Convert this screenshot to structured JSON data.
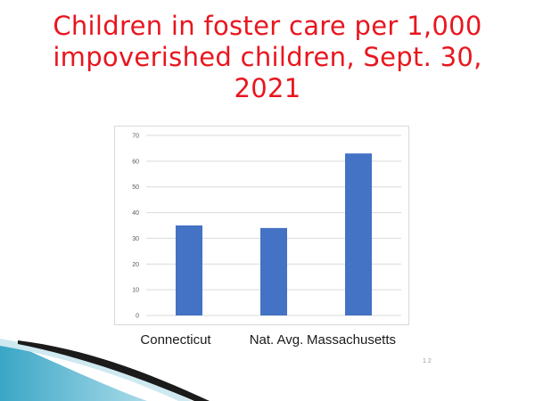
{
  "title_lines": [
    "Children in foster care per 1,000",
    "impoverished children, Sept. 30,",
    "2021"
  ],
  "page_number": "1 2",
  "colors": {
    "title": "#e8161e",
    "bar": "#4472c4",
    "grid": "#d9d9d9",
    "swoosh_dark": "#1b1b1b",
    "swoosh_teal": "#2e8fb0",
    "swoosh_light": "#bfe3ee"
  },
  "chart_data": {
    "type": "bar",
    "categories": [
      "Connecticut",
      "Nat. Avg.",
      "Massachusetts"
    ],
    "values": [
      35,
      34,
      63
    ],
    "title": "Children in foster care per 1,000 impoverished children, Sept. 30, 2021",
    "xlabel": "",
    "ylabel": "",
    "ylim": [
      0,
      70
    ],
    "yticks": [
      0,
      10,
      20,
      30,
      40,
      50,
      60,
      70
    ],
    "grid": true,
    "legend": "none"
  }
}
